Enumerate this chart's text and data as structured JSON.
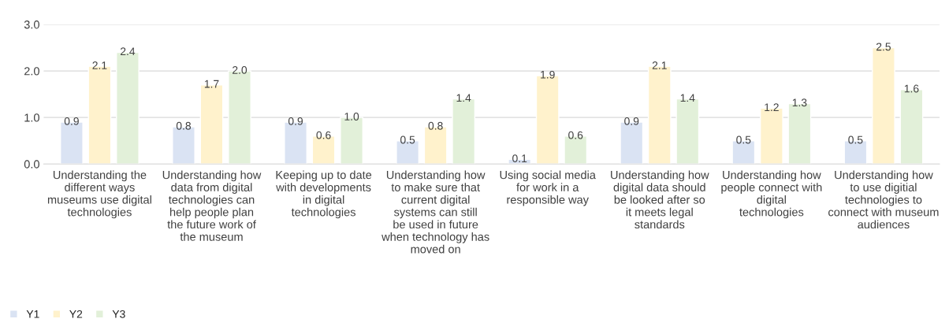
{
  "chart_data": {
    "type": "bar",
    "categories": [
      "Understanding the different ways museums use digital technologies",
      "Understanding how data from digital technologies can help people plan the future work of the museum",
      "Keeping up to date with developments in digital technologies",
      "Understanding how to make sure that current digital systems can still be used in future when technology has moved on",
      "Using social media for work in a responsible way",
      "Understanding how digital data should be looked after so it meets legal standards",
      "Understanding how people connect with digital technologies",
      "Understanding how to use digitial technologies to connect with museum audiences"
    ],
    "series": [
      {
        "name": "Y1",
        "color": "#dae3f3",
        "values": [
          0.9,
          0.8,
          0.9,
          0.5,
          0.1,
          0.9,
          0.5,
          0.5
        ],
        "value_labels": [
          "0.9",
          "0.8",
          "0.9",
          "0.5",
          "0.1",
          "0.9",
          "0.5",
          "0.5"
        ]
      },
      {
        "name": "Y2",
        "color": "#fff2cc",
        "values": [
          2.1,
          1.7,
          0.6,
          0.8,
          1.9,
          2.1,
          1.2,
          2.5
        ],
        "value_labels": [
          "2.1",
          "1.7",
          "0.6",
          "0.8",
          "1.9",
          "2.1",
          "1.2",
          "2.5"
        ]
      },
      {
        "name": "Y3",
        "color": "#e2f0d9",
        "values": [
          2.4,
          2.0,
          1.0,
          1.4,
          0.6,
          1.4,
          1.3,
          1.6
        ],
        "value_labels": [
          "2.4",
          "2.0",
          "1.0",
          "1.4",
          "0.6",
          "1.4",
          "1.3",
          "1.6"
        ]
      }
    ],
    "ylim": [
      0,
      3
    ],
    "yticks": [
      {
        "value": 0,
        "label": "0.0"
      },
      {
        "value": 1,
        "label": "1.0"
      },
      {
        "value": 2,
        "label": "2.0"
      },
      {
        "value": 3,
        "label": "3.0"
      }
    ],
    "grid": "y",
    "legend": "bottom left"
  }
}
